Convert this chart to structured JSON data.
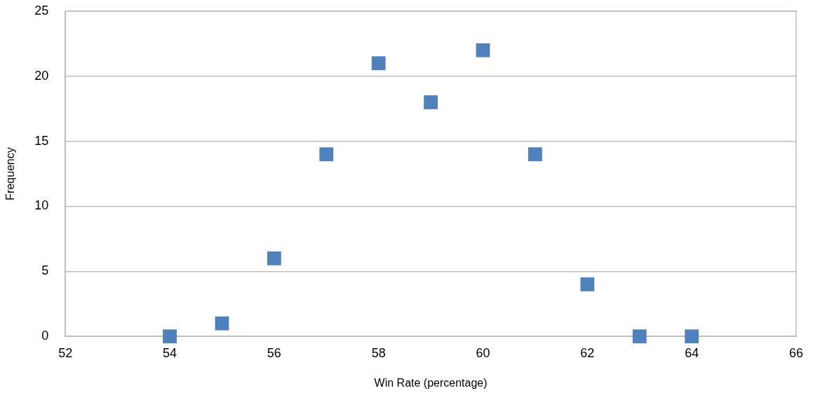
{
  "chart_data": {
    "type": "scatter",
    "xlabel": "Win Rate (percentage)",
    "ylabel": "Frequency",
    "x": [
      54,
      55,
      56,
      57,
      58,
      59,
      60,
      61,
      62,
      63,
      64
    ],
    "values": [
      0,
      1,
      6,
      14,
      21,
      18,
      22,
      14,
      4,
      0,
      0
    ],
    "color": "#4f81bd",
    "marker": "square",
    "xlim": [
      52,
      66
    ],
    "xticks": [
      52,
      54,
      56,
      58,
      60,
      62,
      64,
      66
    ],
    "ylim": [
      0,
      25
    ],
    "yticks": [
      0,
      5,
      10,
      15,
      20,
      25
    ],
    "grid": "y"
  }
}
